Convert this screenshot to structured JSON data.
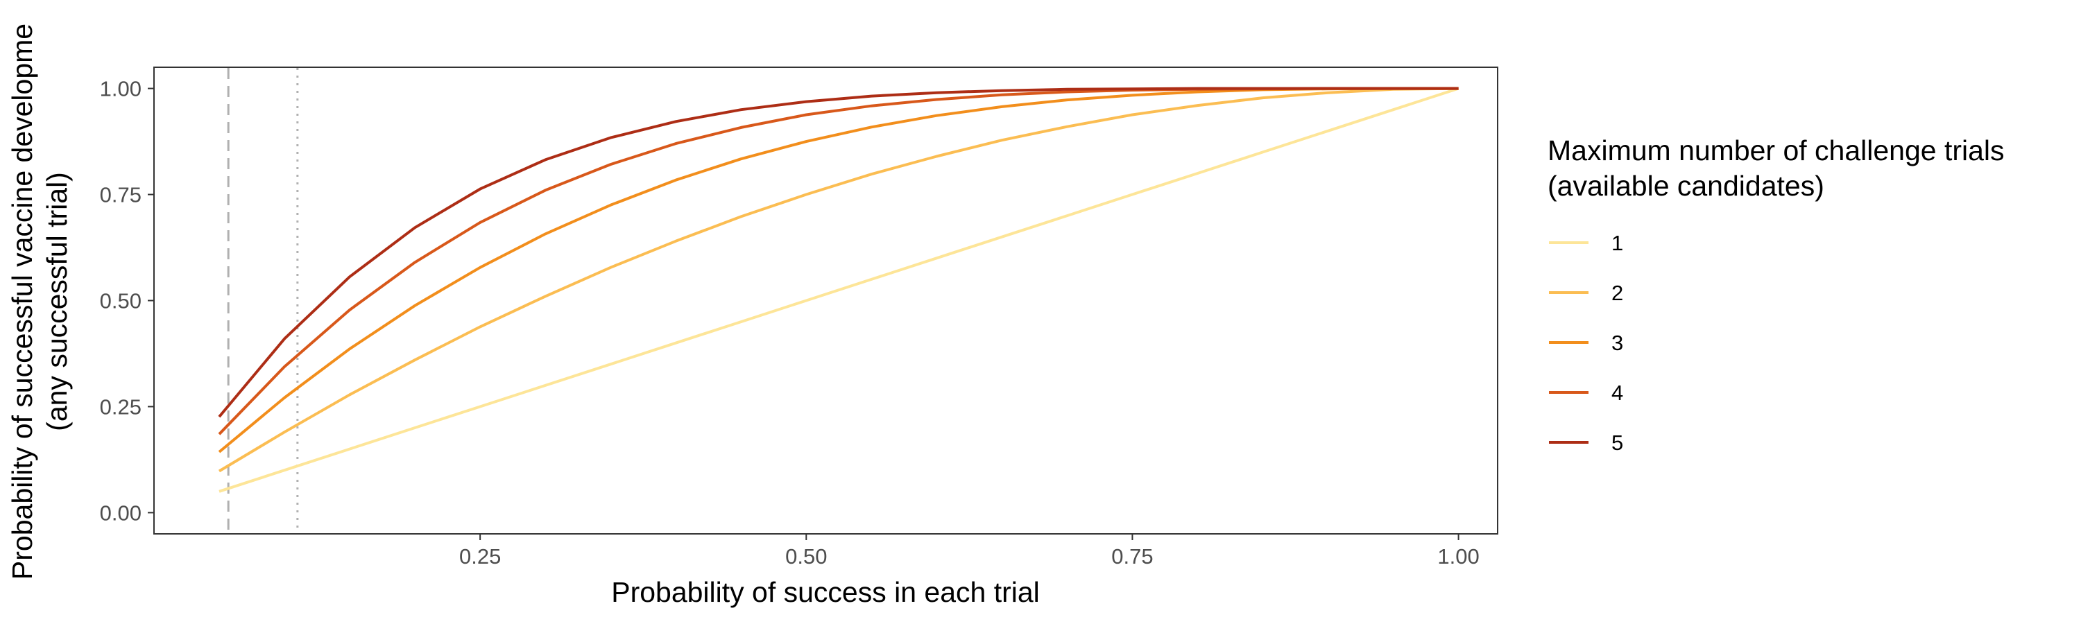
{
  "chart_data": {
    "type": "line",
    "title": "",
    "xlabel": "Probability of success in each trial",
    "ylabel_line1": "Probability of successful vaccine developme",
    "ylabel_line2": "(any successful trial)",
    "xlim": [
      0.0,
      1.03
    ],
    "ylim": [
      -0.05,
      1.05
    ],
    "x_ticks": [
      0.25,
      0.5,
      0.75,
      1.0
    ],
    "x_tick_labels": [
      "0.25",
      "0.50",
      "0.75",
      "1.00"
    ],
    "y_ticks": [
      0.0,
      0.25,
      0.5,
      0.75,
      1.0
    ],
    "y_tick_labels": [
      "0.00",
      "0.25",
      "0.50",
      "0.75",
      "1.00"
    ],
    "grid": false,
    "reference_lines": [
      {
        "x": 0.057,
        "style": "dashed",
        "color": "#b0b0b0"
      },
      {
        "x": 0.11,
        "style": "dotted",
        "color": "#b0b0b0"
      }
    ],
    "x": [
      0.05,
      0.1,
      0.15,
      0.2,
      0.25,
      0.3,
      0.35,
      0.4,
      0.45,
      0.5,
      0.55,
      0.6,
      0.65,
      0.7,
      0.75,
      0.8,
      0.85,
      0.9,
      0.95,
      1.0
    ],
    "legend": {
      "title_line1": "Maximum number of challenge trials",
      "title_line2": "(available candidates)",
      "position": "right"
    },
    "series": [
      {
        "name": "1",
        "color": "#fde598",
        "values": [
          0.05,
          0.1,
          0.15,
          0.2,
          0.25,
          0.3,
          0.35,
          0.4,
          0.45,
          0.5,
          0.55,
          0.6,
          0.65,
          0.7,
          0.75,
          0.8,
          0.85,
          0.9,
          0.95,
          1.0
        ]
      },
      {
        "name": "2",
        "color": "#fbbd52",
        "values": [
          0.098,
          0.19,
          0.278,
          0.36,
          0.438,
          0.51,
          0.578,
          0.64,
          0.698,
          0.75,
          0.798,
          0.84,
          0.878,
          0.91,
          0.938,
          0.96,
          0.978,
          0.99,
          0.998,
          1.0
        ]
      },
      {
        "name": "3",
        "color": "#f28e1c",
        "values": [
          0.143,
          0.271,
          0.386,
          0.488,
          0.578,
          0.657,
          0.725,
          0.784,
          0.834,
          0.875,
          0.909,
          0.936,
          0.957,
          0.973,
          0.984,
          0.992,
          0.997,
          0.999,
          1.0,
          1.0
        ]
      },
      {
        "name": "4",
        "color": "#d8581a",
        "values": [
          0.185,
          0.344,
          0.478,
          0.59,
          0.684,
          0.76,
          0.821,
          0.87,
          0.908,
          0.938,
          0.959,
          0.974,
          0.985,
          0.992,
          0.996,
          0.998,
          0.999,
          1.0,
          1.0,
          1.0
        ]
      },
      {
        "name": "5",
        "color": "#ad2d15",
        "values": [
          0.226,
          0.41,
          0.556,
          0.672,
          0.763,
          0.832,
          0.884,
          0.922,
          0.95,
          0.969,
          0.982,
          0.99,
          0.995,
          0.998,
          0.999,
          1.0,
          1.0,
          1.0,
          1.0,
          1.0
        ]
      }
    ]
  }
}
